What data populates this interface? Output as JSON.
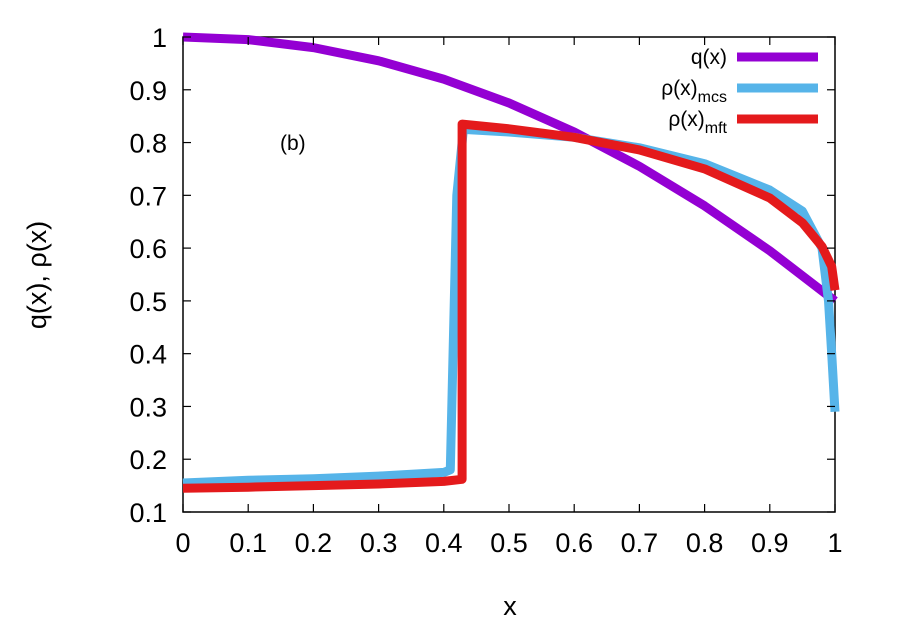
{
  "chart_data": {
    "type": "line",
    "xlabel": "x",
    "ylabel": "q(x), ρ(x)",
    "xlim": [
      0,
      1
    ],
    "ylim": [
      0.1,
      1
    ],
    "xticks": [
      "0",
      "0.1",
      "0.2",
      "0.3",
      "0.4",
      "0.5",
      "0.6",
      "0.7",
      "0.8",
      "0.9",
      "1"
    ],
    "yticks": [
      "0.1",
      "0.2",
      "0.3",
      "0.4",
      "0.5",
      "0.6",
      "0.7",
      "0.8",
      "0.9",
      "1"
    ],
    "annotation": "(b)",
    "grid": false,
    "legend_position": "top-right",
    "series": [
      {
        "name": "q(x)",
        "legend_main": "q(x)",
        "legend_sub": "",
        "color": "#9400d3",
        "x": [
          0,
          0.1,
          0.2,
          0.3,
          0.4,
          0.5,
          0.6,
          0.7,
          0.8,
          0.9,
          1.0
        ],
        "y": [
          1.0,
          0.995,
          0.98,
          0.955,
          0.92,
          0.875,
          0.82,
          0.755,
          0.68,
          0.595,
          0.5
        ]
      },
      {
        "name": "ρ(x)mcs",
        "legend_main": "ρ(x)",
        "legend_sub": "mcs",
        "color": "#56b4e9",
        "x": [
          0,
          0.1,
          0.2,
          0.3,
          0.4,
          0.41,
          0.42,
          0.43,
          0.5,
          0.6,
          0.7,
          0.8,
          0.9,
          0.95,
          0.98,
          0.99,
          0.995,
          1.0
        ],
        "y": [
          0.155,
          0.16,
          0.163,
          0.168,
          0.175,
          0.18,
          0.7,
          0.825,
          0.82,
          0.81,
          0.79,
          0.76,
          0.71,
          0.67,
          0.6,
          0.5,
          0.4,
          0.29
        ]
      },
      {
        "name": "ρ(x)mft",
        "legend_main": "ρ(x)",
        "legend_sub": "mft",
        "color": "#e41a1c",
        "x": [
          0,
          0.1,
          0.2,
          0.3,
          0.4,
          0.428,
          0.428,
          0.5,
          0.6,
          0.7,
          0.8,
          0.9,
          0.95,
          0.98,
          0.995,
          1.0
        ],
        "y": [
          0.145,
          0.147,
          0.15,
          0.153,
          0.158,
          0.162,
          0.835,
          0.826,
          0.81,
          0.786,
          0.75,
          0.695,
          0.648,
          0.603,
          0.565,
          0.52
        ]
      }
    ]
  }
}
